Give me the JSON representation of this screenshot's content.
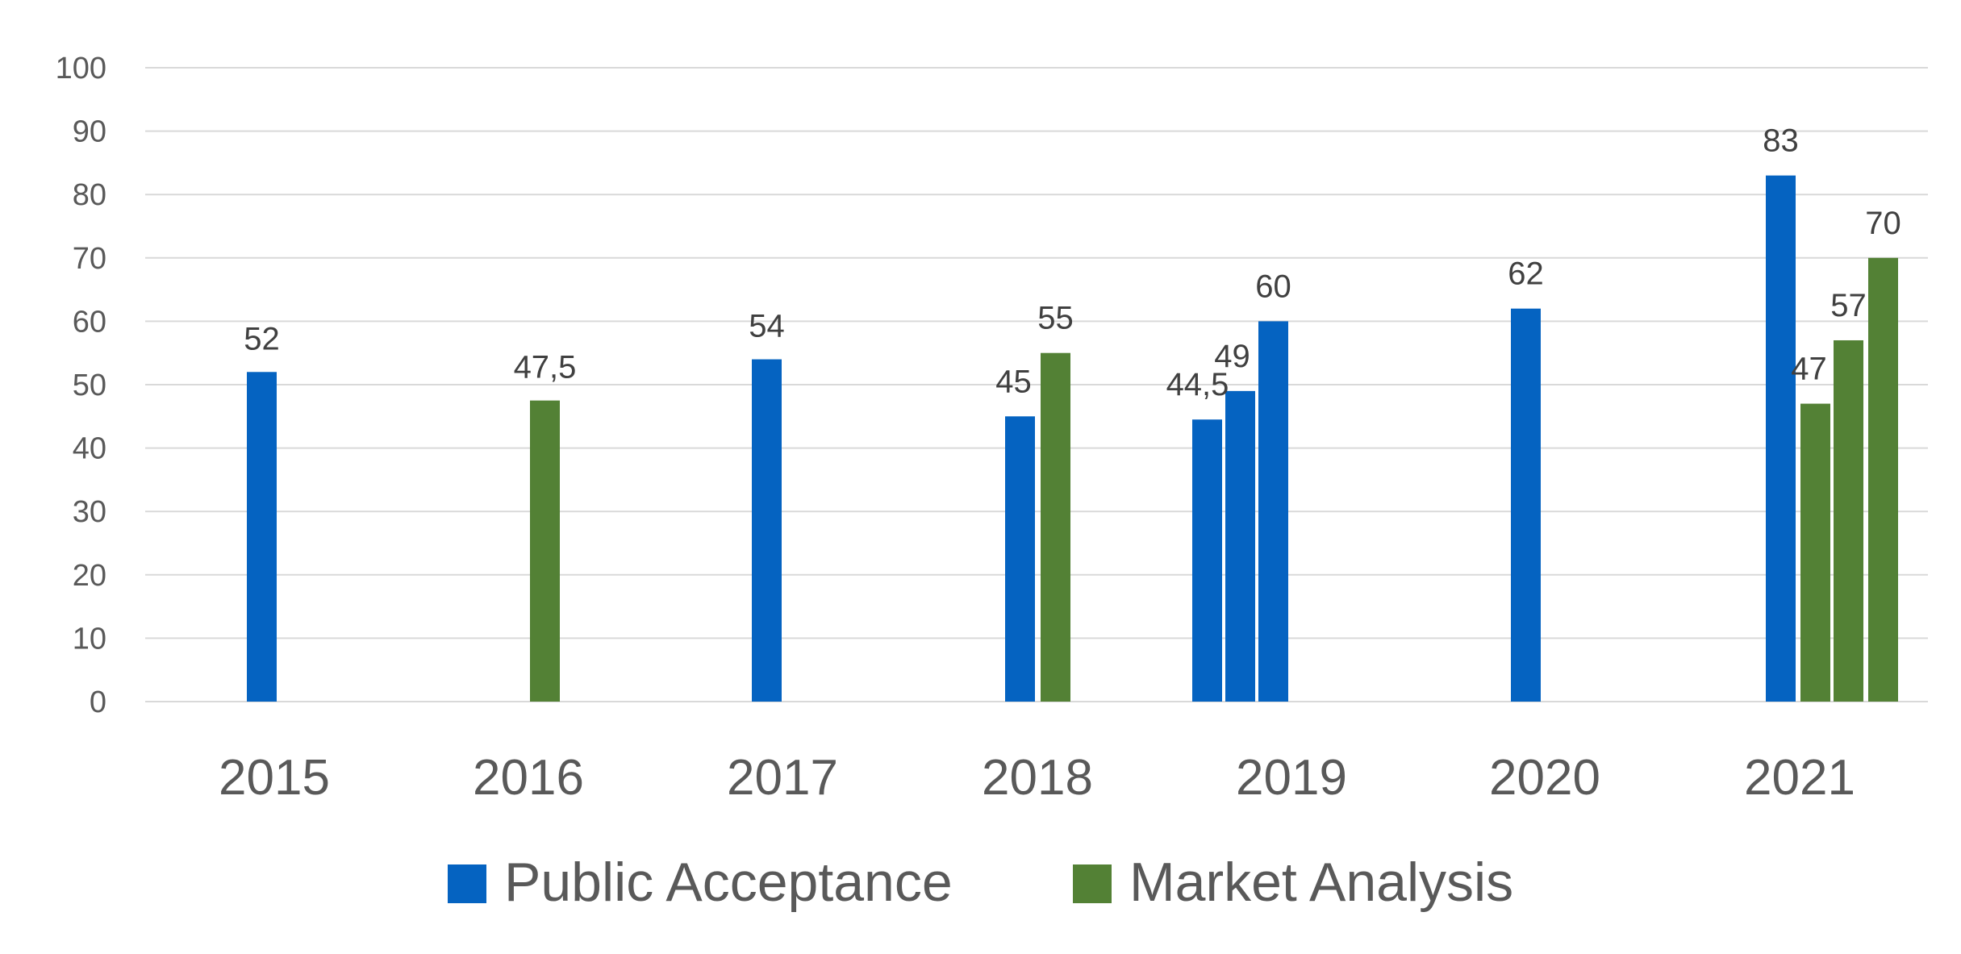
{
  "chart_data": {
    "type": "bar",
    "title": "",
    "xlabel": "",
    "ylabel": "",
    "ylim": [
      0,
      100
    ],
    "yticks": [
      "0",
      "10",
      "20",
      "30",
      "40",
      "50",
      "60",
      "70",
      "80",
      "90",
      "100"
    ],
    "grid": true,
    "legend_position": "bottom",
    "categories": [
      "2015",
      "2016",
      "2017",
      "2018",
      "2019",
      "2020",
      "2021"
    ],
    "series": [
      {
        "name": "Public Acceptance",
        "color": "#0563c1"
      },
      {
        "name": "Market Analysis",
        "color": "#538135"
      }
    ],
    "bars": [
      {
        "category": "2015",
        "series": "Public Acceptance",
        "value": 52,
        "label": "52"
      },
      {
        "category": "2016",
        "series": "Market Analysis",
        "value": 47.5,
        "label": "47,5"
      },
      {
        "category": "2017",
        "series": "Public Acceptance",
        "value": 54,
        "label": "54"
      },
      {
        "category": "2018",
        "series": "Public Acceptance",
        "value": 45,
        "label": "45"
      },
      {
        "category": "2018",
        "series": "Market Analysis",
        "value": 55,
        "label": "55"
      },
      {
        "category": "2019",
        "series": "Public Acceptance",
        "value": 44.5,
        "label": "44,5"
      },
      {
        "category": "2019",
        "series": "Public Acceptance",
        "value": 49,
        "label": "49"
      },
      {
        "category": "2019",
        "series": "Public Acceptance",
        "value": 60,
        "label": "60"
      },
      {
        "category": "2020",
        "series": "Public Acceptance",
        "value": 62,
        "label": "62"
      },
      {
        "category": "2021",
        "series": "Public Acceptance",
        "value": 83,
        "label": "83"
      },
      {
        "category": "2021",
        "series": "Market Analysis",
        "value": 47,
        "label": "47"
      },
      {
        "category": "2021",
        "series": "Market Analysis",
        "value": 57,
        "label": "57"
      },
      {
        "category": "2021",
        "series": "Market Analysis",
        "value": 70,
        "label": "70"
      }
    ]
  }
}
